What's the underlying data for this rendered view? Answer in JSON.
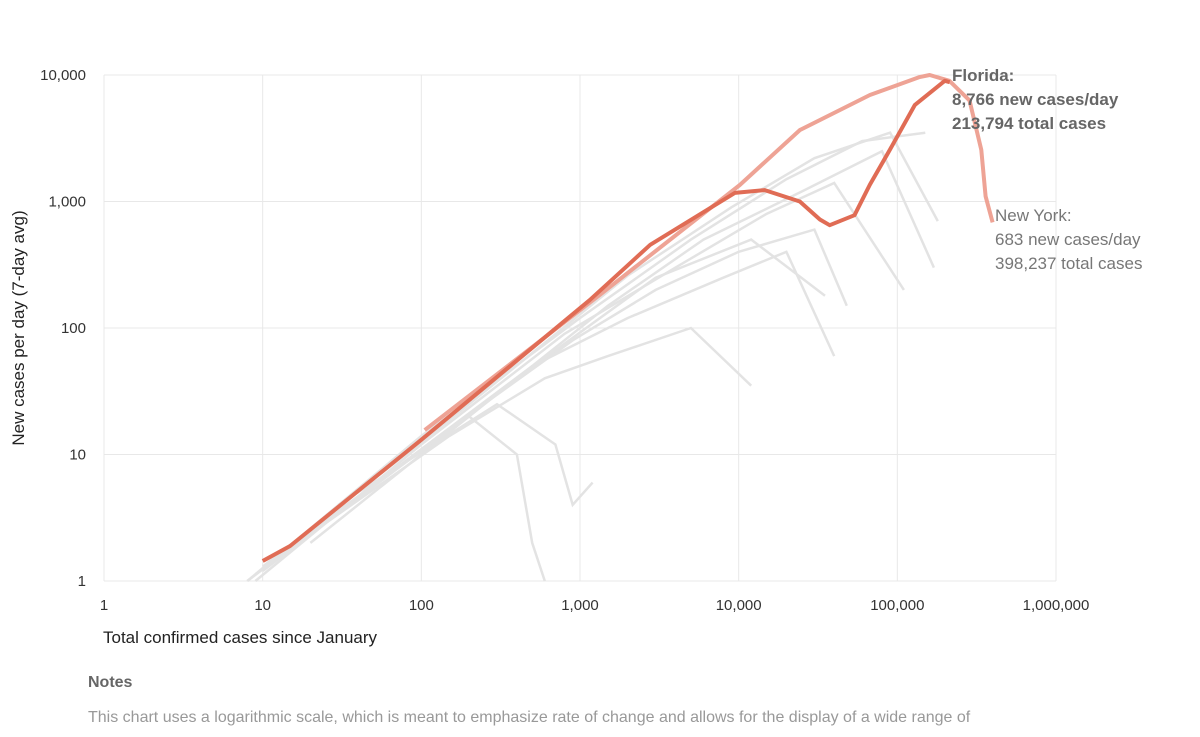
{
  "chart_data": {
    "type": "line",
    "xscale": "log",
    "yscale": "log",
    "xlim": [
      1,
      1000000
    ],
    "ylim": [
      1,
      10000
    ],
    "xlabel": "Total confirmed cases since January",
    "ylabel": "New cases per day (7-day avg)",
    "xticks": [
      {
        "v": 1,
        "label": "1"
      },
      {
        "v": 10,
        "label": "10"
      },
      {
        "v": 100,
        "label": "100"
      },
      {
        "v": 1000,
        "label": "1,000"
      },
      {
        "v": 10000,
        "label": "10,000"
      },
      {
        "v": 100000,
        "label": "100,000"
      },
      {
        "v": 1000000,
        "label": "1,000,000"
      }
    ],
    "yticks": [
      {
        "v": 1,
        "label": "1"
      },
      {
        "v": 10,
        "label": "10"
      },
      {
        "v": 100,
        "label": "100"
      },
      {
        "v": 1000,
        "label": "1,000"
      },
      {
        "v": 10000,
        "label": "10,000"
      }
    ],
    "grid": true,
    "highlight": [
      {
        "name": "Florida",
        "color": "#e06c55",
        "annotation": [
          "Florida:",
          "8,766 new cases/day",
          "213,794 total cases"
        ],
        "x": [
          10,
          14.9,
          98,
          1150,
          2770,
          9460,
          14600,
          24300,
          32500,
          37500,
          53700,
          67200,
          89700,
          129000,
          199000,
          213794
        ],
        "y": [
          1.44,
          1.89,
          12.8,
          166,
          455,
          1170,
          1230,
          1000,
          720,
          650,
          780,
          1360,
          2560,
          5800,
          9000,
          8766
        ]
      },
      {
        "name": "New York",
        "color": "#eea395",
        "annotation": [
          "New York:",
          "683 new cases/day",
          "398,237 total cases"
        ],
        "x": [
          105,
          1334,
          10160,
          24300,
          67200,
          137000,
          160000,
          213000,
          285000,
          338000,
          360000,
          398237
        ],
        "y": [
          15.6,
          183,
          1350,
          3670,
          6950,
          9600,
          10000,
          9000,
          6300,
          2560,
          1100,
          683
        ]
      }
    ],
    "other_series": [
      {
        "x": [
          8,
          100,
          1000,
          5000,
          20000,
          60000,
          150000
        ],
        "y": [
          1,
          14,
          120,
          500,
          1500,
          3000,
          3500
        ]
      },
      {
        "x": [
          9,
          100,
          800,
          4000,
          15000,
          40000,
          110000
        ],
        "y": [
          1,
          12,
          90,
          300,
          800,
          1400,
          200
        ]
      },
      {
        "x": [
          10,
          120,
          900,
          3000,
          10000,
          30000,
          48000
        ],
        "y": [
          1.2,
          13,
          80,
          200,
          400,
          600,
          150
        ]
      },
      {
        "x": [
          8,
          90,
          500,
          2000,
          8000,
          20000,
          40000
        ],
        "y": [
          1,
          10,
          50,
          120,
          250,
          400,
          60
        ]
      },
      {
        "x": [
          12,
          150,
          600,
          1500,
          5000,
          12000
        ],
        "y": [
          1.5,
          14,
          40,
          60,
          100,
          35
        ]
      },
      {
        "x": [
          20,
          200,
          400,
          500,
          600
        ],
        "y": [
          2.5,
          20,
          10,
          2,
          1
        ]
      },
      {
        "x": [
          30,
          300,
          700,
          900,
          1200
        ],
        "y": [
          4,
          25,
          12,
          4,
          6
        ]
      },
      {
        "x": [
          15,
          300,
          1500,
          6000,
          25000,
          80000,
          170000
        ],
        "y": [
          1.8,
          30,
          150,
          500,
          1200,
          2500,
          300
        ]
      },
      {
        "x": [
          10,
          200,
          2000,
          9000,
          30000,
          90000,
          180000
        ],
        "y": [
          1.3,
          25,
          260,
          900,
          2200,
          3500,
          700
        ]
      },
      {
        "x": [
          20,
          400,
          3000,
          12000,
          35000
        ],
        "y": [
          2,
          40,
          250,
          500,
          180
        ]
      }
    ]
  },
  "notes": {
    "heading": "Notes",
    "text": "This chart uses a logarithmic scale, which is meant to emphasize rate of change and allows for the display of a wide range of"
  }
}
